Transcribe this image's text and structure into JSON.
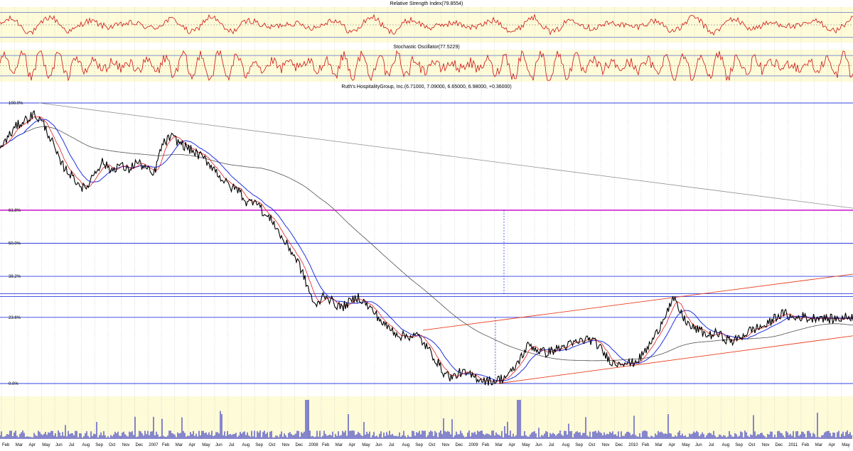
{
  "chart_data": {
    "type": "line",
    "panels": {
      "rsi": {
        "title": "Relative Strength Index(79.8554)"
      },
      "stochastic": {
        "title": "Stochastic Oscillator(77.5229)"
      },
      "price": {
        "title": "Ruth's HospitalityGroup, Inc.(6.71000, 7.09000, 6.65000, 6.98000, +0.36000)",
        "fib_levels": [
          {
            "label": "100.0%",
            "value": 1.0
          },
          {
            "label": "61.8%",
            "value": 0.618
          },
          {
            "label": "50.0%",
            "value": 0.5
          },
          {
            "label": "38.2%",
            "value": 0.382
          },
          {
            "label": "23.6%",
            "value": 0.236
          },
          {
            "label": "0.0%",
            "value": 0.0
          }
        ]
      },
      "volume": {}
    },
    "price_series_fraction": [
      [
        0.0,
        0.84
      ],
      [
        0.02,
        0.92
      ],
      [
        0.04,
        0.96
      ],
      [
        0.05,
        0.93
      ],
      [
        0.06,
        0.87
      ],
      [
        0.07,
        0.79
      ],
      [
        0.09,
        0.72
      ],
      [
        0.1,
        0.69
      ],
      [
        0.11,
        0.75
      ],
      [
        0.12,
        0.79
      ],
      [
        0.13,
        0.76
      ],
      [
        0.14,
        0.78
      ],
      [
        0.15,
        0.76
      ],
      [
        0.16,
        0.79
      ],
      [
        0.17,
        0.77
      ],
      [
        0.18,
        0.74
      ],
      [
        0.19,
        0.85
      ],
      [
        0.2,
        0.88
      ],
      [
        0.21,
        0.86
      ],
      [
        0.22,
        0.84
      ],
      [
        0.23,
        0.82
      ],
      [
        0.24,
        0.8
      ],
      [
        0.25,
        0.77
      ],
      [
        0.26,
        0.73
      ],
      [
        0.27,
        0.7
      ],
      [
        0.28,
        0.69
      ],
      [
        0.29,
        0.64
      ],
      [
        0.3,
        0.66
      ],
      [
        0.31,
        0.6
      ],
      [
        0.32,
        0.58
      ],
      [
        0.33,
        0.52
      ],
      [
        0.34,
        0.48
      ],
      [
        0.35,
        0.43
      ],
      [
        0.36,
        0.35
      ],
      [
        0.37,
        0.27
      ],
      [
        0.38,
        0.32
      ],
      [
        0.39,
        0.29
      ],
      [
        0.4,
        0.27
      ],
      [
        0.41,
        0.29
      ],
      [
        0.42,
        0.31
      ],
      [
        0.43,
        0.28
      ],
      [
        0.44,
        0.25
      ],
      [
        0.45,
        0.21
      ],
      [
        0.46,
        0.19
      ],
      [
        0.47,
        0.17
      ],
      [
        0.48,
        0.17
      ],
      [
        0.49,
        0.17
      ],
      [
        0.5,
        0.13
      ],
      [
        0.51,
        0.09
      ],
      [
        0.52,
        0.04
      ],
      [
        0.53,
        0.02
      ],
      [
        0.54,
        0.04
      ],
      [
        0.55,
        0.03
      ],
      [
        0.56,
        0.02
      ],
      [
        0.57,
        0.01
      ],
      [
        0.58,
        0.01
      ],
      [
        0.59,
        0.02
      ],
      [
        0.6,
        0.04
      ],
      [
        0.61,
        0.09
      ],
      [
        0.62,
        0.14
      ],
      [
        0.63,
        0.12
      ],
      [
        0.64,
        0.11
      ],
      [
        0.65,
        0.12
      ],
      [
        0.66,
        0.13
      ],
      [
        0.67,
        0.14
      ],
      [
        0.68,
        0.15
      ],
      [
        0.69,
        0.16
      ],
      [
        0.7,
        0.14
      ],
      [
        0.71,
        0.1
      ],
      [
        0.72,
        0.07
      ],
      [
        0.73,
        0.08
      ],
      [
        0.74,
        0.07
      ],
      [
        0.75,
        0.09
      ],
      [
        0.76,
        0.13
      ],
      [
        0.77,
        0.18
      ],
      [
        0.78,
        0.25
      ],
      [
        0.79,
        0.3
      ],
      [
        0.8,
        0.24
      ],
      [
        0.81,
        0.2
      ],
      [
        0.82,
        0.19
      ],
      [
        0.83,
        0.17
      ],
      [
        0.84,
        0.18
      ],
      [
        0.85,
        0.16
      ],
      [
        0.86,
        0.15
      ],
      [
        0.87,
        0.17
      ],
      [
        0.88,
        0.19
      ],
      [
        0.89,
        0.2
      ],
      [
        0.9,
        0.21
      ],
      [
        0.91,
        0.24
      ],
      [
        0.92,
        0.25
      ],
      [
        0.93,
        0.23
      ],
      [
        0.94,
        0.24
      ],
      [
        0.95,
        0.23
      ],
      [
        0.96,
        0.24
      ],
      [
        0.97,
        0.23
      ],
      [
        0.98,
        0.23
      ],
      [
        1.0,
        0.24
      ]
    ],
    "month_labels": [
      "Feb",
      "Mar",
      "Apr",
      "May",
      "Jun",
      "Jul",
      "Aug",
      "Sep",
      "Oct",
      "Nov",
      "Dec",
      "2007",
      "Feb",
      "Mar",
      "Apr",
      "May",
      "Jun",
      "Jul",
      "Aug",
      "Sep",
      "Oct",
      "Nov",
      "Dec",
      "2008",
      "Feb",
      "Mar",
      "Apr",
      "May",
      "Jun",
      "Jul",
      "Aug",
      "Sep",
      "Oct",
      "Nov",
      "Dec",
      "2009",
      "Feb",
      "Mar",
      "Apr",
      "May",
      "Jun",
      "Jul",
      "Aug",
      "Sep",
      "Oct",
      "Nov",
      "Dec",
      "2010",
      "Feb",
      "Mar",
      "Apr",
      "May",
      "Jun",
      "Jul",
      "Aug",
      "Sep",
      "Oct",
      "Nov",
      "Dec",
      "2011",
      "Feb",
      "Mar",
      "Apr",
      "May"
    ],
    "colors": {
      "panel_bg": "#fdfbd8",
      "price": "#000000",
      "ma_short": "#e02020",
      "ma_mid": "#2030e0",
      "ma_long": "#505050",
      "fib_line": "#3040e0",
      "fib_618": "#d020d0",
      "trend": "#e84020",
      "oscillator": "#d01010",
      "volume": "#1010c0",
      "grid": "#b8b8b8"
    },
    "grid": true
  }
}
